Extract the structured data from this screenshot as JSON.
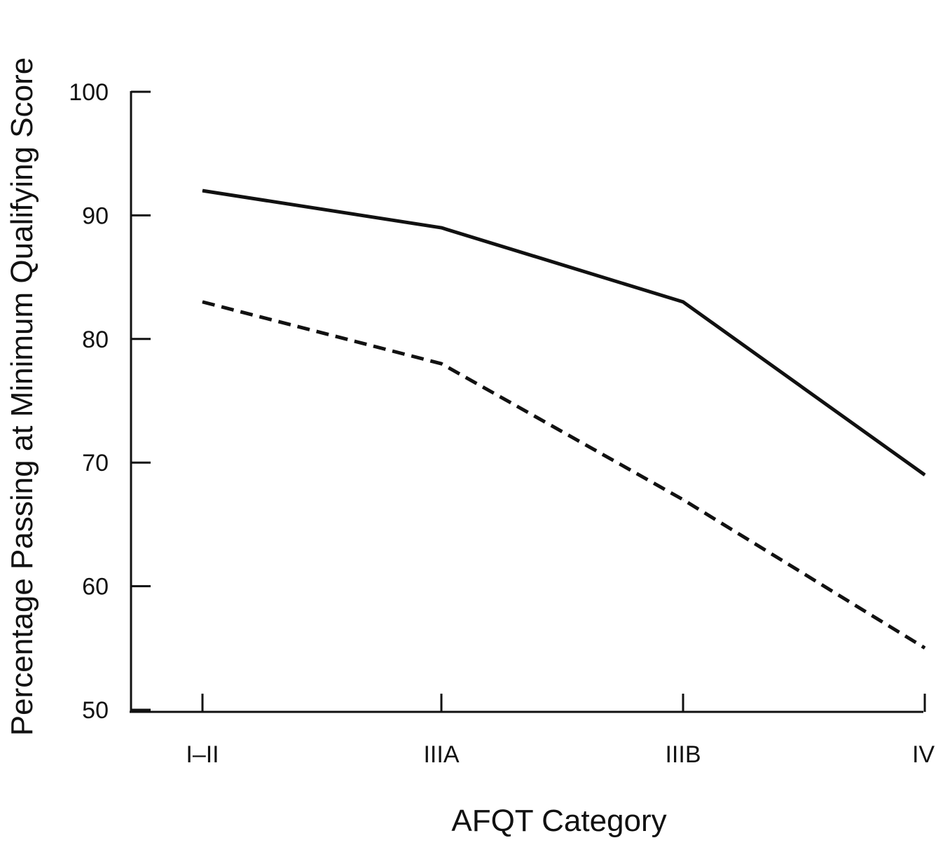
{
  "chart_data": {
    "type": "line",
    "title": "",
    "xlabel": "AFQT Category",
    "ylabel": "Percentage Passing at Minimum Qualifying Score",
    "categories": [
      "I–II",
      "IIIA",
      "IIIB",
      "IV"
    ],
    "ylim": [
      50,
      100
    ],
    "yticks": [
      "50",
      "60",
      "70",
      "80",
      "90",
      "100"
    ],
    "grid": false,
    "legend": "none",
    "series": [
      {
        "style": "solid",
        "color": "#111111",
        "values": [
          92,
          89,
          83,
          69
        ]
      },
      {
        "style": "dashed",
        "color": "#111111",
        "values": [
          83,
          78,
          67,
          55
        ]
      }
    ]
  }
}
